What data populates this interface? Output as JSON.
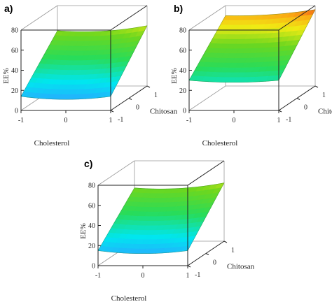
{
  "figure": {
    "panels": [
      {
        "label": "a)"
      },
      {
        "label": "b)"
      },
      {
        "label": "c)"
      }
    ]
  },
  "chart_data": [
    {
      "type": "surface",
      "panel": "a)",
      "xlabel": "Cholesterol",
      "ylabel": "Chitosan",
      "zlabel": "EE%",
      "x_ticks": [
        "-1",
        "0",
        "1"
      ],
      "y_ticks": [
        "-1",
        "0",
        "1"
      ],
      "z_ticks": [
        "0",
        "20",
        "40",
        "60",
        "80"
      ],
      "zlim": [
        0,
        80
      ],
      "corners": {
        "x-1_y-1": 14,
        "x1_y-1": 14,
        "x-1_y1": 55,
        "x1_y1": 60
      },
      "curvature": 3
    },
    {
      "type": "surface",
      "panel": "b)",
      "xlabel": "Cholesterol",
      "ylabel": "Chitosan",
      "zlabel": "EE%",
      "x_ticks": [
        "-1",
        "0",
        "1"
      ],
      "y_ticks": [
        "-1",
        "0",
        "1"
      ],
      "z_ticks": [
        "0",
        "20",
        "40",
        "60",
        "80"
      ],
      "zlim": [
        0,
        80
      ],
      "corners": {
        "x-1_y-1": 30,
        "x1_y-1": 30,
        "x-1_y1": 70,
        "x1_y1": 76
      },
      "curvature": 2
    },
    {
      "type": "surface",
      "panel": "c)",
      "xlabel": "Cholesterol",
      "ylabel": "Chitosan",
      "zlabel": "EE%",
      "x_ticks": [
        "-1",
        "0",
        "1"
      ],
      "y_ticks": [
        "-1",
        "0",
        "1"
      ],
      "z_ticks": [
        "0",
        "20",
        "40",
        "60",
        "80"
      ],
      "zlim": [
        0,
        80
      ],
      "corners": {
        "x-1_y-1": 15,
        "x1_y-1": 15,
        "x-1_y1": 53,
        "x1_y1": 58
      },
      "curvature": 3
    }
  ]
}
